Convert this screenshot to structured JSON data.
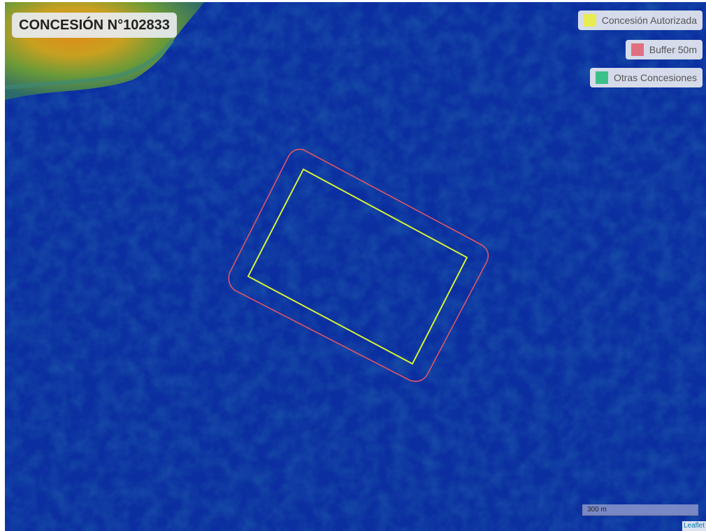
{
  "map": {
    "title": "CONCESIÓN N°102833",
    "scale_label": "300 m",
    "attribution": "Leaflet",
    "background_color": "#0b2ea0",
    "land_colors": [
      "#e08a1a",
      "#c8a020",
      "#5a9a3a",
      "#2d7a5a"
    ]
  },
  "legend": [
    {
      "label": "Concesión Autorizada",
      "color": "#e8ec50"
    },
    {
      "label": "Buffer 50m",
      "color": "#e07080"
    },
    {
      "label": "Otras Concesiones",
      "color": "#3cc08a"
    }
  ],
  "layers": {
    "concession_stroke": "#d6f236",
    "buffer_stroke": "#e05565"
  }
}
